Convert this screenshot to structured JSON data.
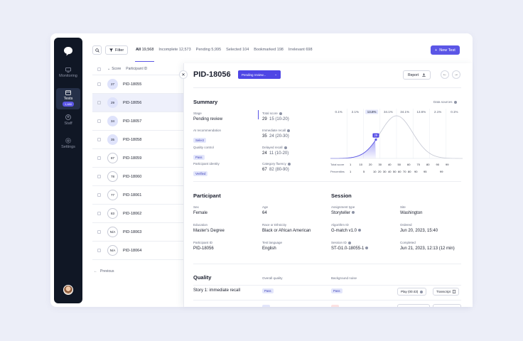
{
  "sidebar": {
    "items": [
      {
        "label": "Monitoring"
      },
      {
        "label": "Tests",
        "badge": "1,480"
      },
      {
        "label": "Staff"
      },
      {
        "label": "Settings"
      }
    ]
  },
  "toolbar": {
    "filter_label": "Filter",
    "new_test_label": "New Test",
    "tabs": [
      {
        "name": "All",
        "count": "19,568"
      },
      {
        "name": "Incomplete",
        "count": "12,573"
      },
      {
        "name": "Pending",
        "count": "5,995"
      },
      {
        "name": "Selected",
        "count": "104"
      },
      {
        "name": "Bookmarked",
        "count": "198"
      },
      {
        "name": "Irrelevant",
        "count": "698"
      }
    ]
  },
  "list": {
    "headers": {
      "score": "Score",
      "participant": "Participant ID"
    },
    "rows": [
      {
        "score": "27",
        "id": "PID-18055"
      },
      {
        "score": "29",
        "id": "PID-18056"
      },
      {
        "score": "34",
        "id": "PID-18057"
      },
      {
        "score": "35",
        "id": "PID-18058"
      },
      {
        "score": "87",
        "id": "PID-18059"
      },
      {
        "score": "78",
        "id": "PID-18060"
      },
      {
        "score": "77",
        "id": "PID-18061"
      },
      {
        "score": "83",
        "id": "PID-18062"
      },
      {
        "score": "N/A",
        "id": "PID-18063"
      },
      {
        "score": "N/A",
        "id": "PID-18064"
      }
    ],
    "previous_label": "Previous"
  },
  "detail": {
    "pid": "PID-18056",
    "status": "Pending review...",
    "report_label": "Report",
    "summary": {
      "title": "Summary",
      "data_sources": "Data sources",
      "stage_label": "Stage",
      "stage_value": "Pending review",
      "ai_label": "AI recommendation",
      "ai_chip": "Select",
      "qc_label": "Quality control",
      "qc_chip": "Pass",
      "pi_label": "Participant identity",
      "pi_chip": "Verified",
      "total_label": "Total score",
      "total_value": "29",
      "total_range": "15 (10-20)",
      "imm_label": "Immediate recall",
      "imm_value": "35",
      "imm_range": "24 (20-30)",
      "del_label": "Delayed recall",
      "del_value": "24",
      "del_range": "11 (10-20)",
      "cat_label": "Category fluency",
      "cat_value": "67",
      "cat_range": "82 (80-90)"
    },
    "distribution": {
      "percents": [
        "0.1%",
        "2.1%",
        "13.6%",
        "34.1%",
        "34.1%",
        "13.6%",
        "2.1%",
        "0.1%"
      ],
      "marker": "29",
      "total_score_label": "Total score",
      "score_ticks": [
        "1",
        "10",
        "20",
        "30",
        "40",
        "50",
        "60",
        "70",
        "80",
        "90",
        "99"
      ],
      "percentiles_label": "Percentiles",
      "percentile_ticks": [
        "1",
        "5",
        "10",
        "20",
        "30",
        "40",
        "50",
        "60",
        "70",
        "80",
        "90",
        "95",
        "99"
      ]
    },
    "participant": {
      "title": "Participant",
      "sex_label": "Sex",
      "sex": "Female",
      "age_label": "Age",
      "age": "64",
      "edu_label": "Education",
      "edu": "Master's Degree",
      "race_label": "Race or Ethnicity",
      "race": "Black or African American",
      "pid_label": "Participant ID",
      "pid": "PID-18056",
      "lang_label": "Test language",
      "lang": "English"
    },
    "session": {
      "title": "Session",
      "assign_label": "Assignment type",
      "assign": "Storyteller",
      "site_label": "Site",
      "site": "Washington",
      "algo_label": "Algorithm ID",
      "algo": "G-match v1.0",
      "ordered_label": "Ordered",
      "ordered": "Jun 20, 2023, 15:40",
      "session_label": "Session ID",
      "session_id": "ST-G1.0-18055-1",
      "completed_label": "Completed",
      "completed": "Jun 21, 2023, 12:13 (12 min)"
    },
    "quality": {
      "title": "Quality",
      "overall_label": "Overall quality",
      "noise_label": "Background noise",
      "row_name": "Story 1: immediate recall",
      "row_overall": "Pass",
      "row_noise": "Pass",
      "play_label": "Play (00:43)",
      "transcript_label": "Transcript"
    }
  }
}
